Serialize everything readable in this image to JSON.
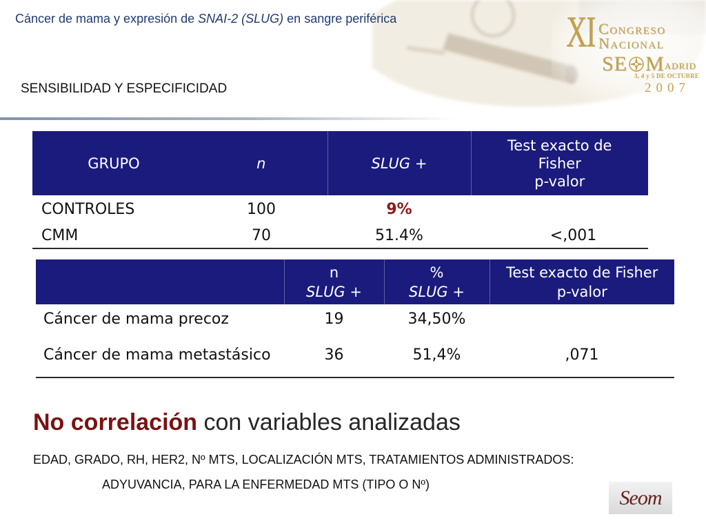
{
  "slide": {
    "title": {
      "before": "Cáncer de mama y expresión de ",
      "italic": "SNAI-2 (SLUG)",
      "after": " en sangre periférica"
    },
    "section_heading": "SENSIBILIDAD Y ESPECIFICIDAD"
  },
  "congress_logo": {
    "roman_numeral": "XI",
    "line1": "CONGRESO",
    "line2": "NACIONAL",
    "society_start": "SE",
    "society_end": "M",
    "city_rest": "ADRID",
    "dates": "3, 4 y 5 DE OCTUBRE",
    "year": "2007",
    "icon": "compass-rose-icon"
  },
  "table_groups": {
    "headers": {
      "group": "GRUPO",
      "n": "n",
      "slug_pos": "SLUG +",
      "fisher": [
        "Test exacto de",
        "Fisher",
        "p-valor"
      ]
    },
    "rows": [
      {
        "group": "CONTROLES",
        "n": "100",
        "slug_pos": "9%"
      },
      {
        "group": "CMM",
        "n": "70",
        "slug_pos": "51.4%",
        "p_value": "<,001"
      }
    ]
  },
  "table_subgroups": {
    "headers": {
      "n": [
        "n",
        "SLUG +"
      ],
      "pct": [
        "%",
        "SLUG +"
      ],
      "fisher": [
        "Test exacto de Fisher",
        "p-valor"
      ]
    },
    "rows": [
      {
        "label": "Cáncer de mama precoz",
        "n": "19",
        "pct": "34,50%"
      },
      {
        "label": "Cáncer de mama metastásico",
        "n": "36",
        "pct": "51,4%",
        "p_value": ",071"
      }
    ]
  },
  "conclusion": {
    "emphasis": "No correlación",
    "rest": " con variables analizadas",
    "variables_line1": "EDAD, GRADO, RH, HER2, Nº MTS, LOCALIZACIÓN MTS, TRATAMIENTOS ADMINISTRADOS:",
    "variables_line2": "ADYUVANCIA, PARA LA ENFERMEDAD MTS (TIPO O Nº)"
  },
  "footer_logo": {
    "lettering": "Seom"
  },
  "colors": {
    "title_text": "#1f3a72",
    "table_header_bg": "#1b1b7d",
    "highlight_value": "#8b1a1a",
    "emphasis_text": "#7a1212",
    "logo_gold": "#c2a04c"
  }
}
